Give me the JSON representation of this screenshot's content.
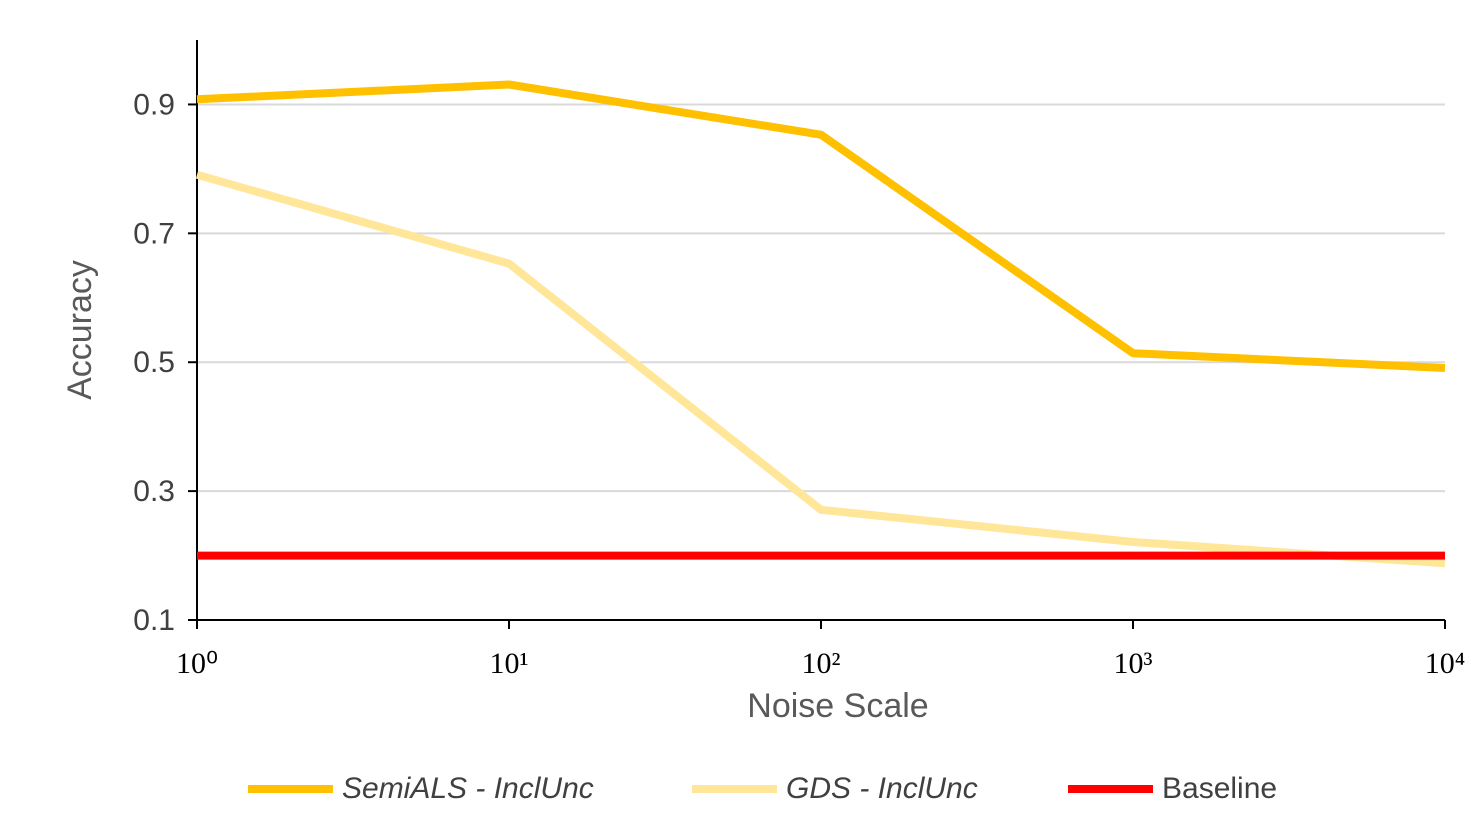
{
  "chart_data": {
    "type": "line",
    "x_label": "Noise Scale",
    "y_label": "Accuracy",
    "x": [
      1,
      10,
      100,
      1000,
      10000
    ],
    "x_log": true,
    "xlim": [
      1,
      10000
    ],
    "xticks": [
      {
        "value": 1,
        "label": "10⁰"
      },
      {
        "value": 10,
        "label": "10¹"
      },
      {
        "value": 100,
        "label": "10²"
      },
      {
        "value": 1000,
        "label": "10³"
      },
      {
        "value": 10000,
        "label": "10⁴"
      }
    ],
    "ylim": [
      0.1,
      1.0
    ],
    "yticks": [
      0.1,
      0.3,
      0.5,
      0.7,
      0.9
    ],
    "grid": true,
    "legend": "bottom",
    "series": [
      {
        "name": "SemiALS - InclUnc",
        "color": "#FFC000",
        "values": [
          0.908,
          0.931,
          0.853,
          0.514,
          0.491
        ]
      },
      {
        "name": "GDS - InclUnc",
        "color": "#FFE699",
        "values": [
          0.791,
          0.653,
          0.271,
          0.221,
          0.188
        ]
      },
      {
        "name": "Baseline",
        "color": "#FF0000",
        "values": [
          0.2,
          0.2,
          0.2,
          0.2,
          0.2
        ]
      }
    ]
  }
}
